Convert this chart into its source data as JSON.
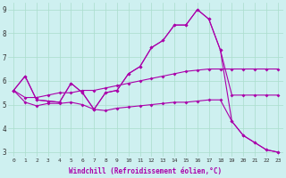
{
  "xlabel": "Windchill (Refroidissement éolien,°C)",
  "background_color": "#cef0f0",
  "grid_color": "#aaddcc",
  "line_color": "#aa00aa",
  "x_values": [
    0,
    1,
    2,
    3,
    4,
    5,
    6,
    7,
    8,
    9,
    10,
    11,
    12,
    13,
    14,
    15,
    16,
    17,
    18,
    19,
    20,
    21,
    22,
    23
  ],
  "series1": [
    5.6,
    6.2,
    5.2,
    5.15,
    5.1,
    5.9,
    5.5,
    4.8,
    5.5,
    5.6,
    6.3,
    6.6,
    7.4,
    7.7,
    8.35,
    8.35,
    9.0,
    8.6,
    7.3,
    5.4,
    5.4,
    5.4,
    5.4,
    5.4
  ],
  "series2": [
    5.6,
    6.2,
    5.2,
    5.15,
    5.1,
    5.9,
    5.5,
    4.8,
    5.5,
    5.6,
    6.3,
    6.6,
    7.4,
    7.7,
    8.35,
    8.35,
    9.0,
    8.6,
    7.3,
    4.3,
    3.7,
    3.4,
    3.1,
    3.0
  ],
  "series3": [
    5.6,
    5.1,
    4.95,
    5.05,
    5.05,
    5.1,
    5.0,
    4.8,
    4.75,
    4.85,
    4.9,
    4.95,
    5.0,
    5.05,
    5.1,
    5.1,
    5.15,
    5.2,
    5.2,
    4.3,
    3.7,
    3.4,
    3.1,
    3.0
  ],
  "series4": [
    5.6,
    5.3,
    5.3,
    5.4,
    5.5,
    5.5,
    5.6,
    5.6,
    5.7,
    5.8,
    5.9,
    6.0,
    6.1,
    6.2,
    6.3,
    6.4,
    6.45,
    6.5,
    6.5,
    6.5,
    6.5,
    6.5,
    6.5,
    6.5
  ],
  "ylim": [
    2.8,
    9.3
  ],
  "yticks": [
    3,
    4,
    5,
    6,
    7,
    8,
    9
  ],
  "xlim": [
    -0.5,
    23.5
  ],
  "xticks": [
    0,
    1,
    2,
    3,
    4,
    5,
    6,
    7,
    8,
    9,
    10,
    11,
    12,
    13,
    14,
    15,
    16,
    17,
    18,
    19,
    20,
    21,
    22,
    23
  ]
}
